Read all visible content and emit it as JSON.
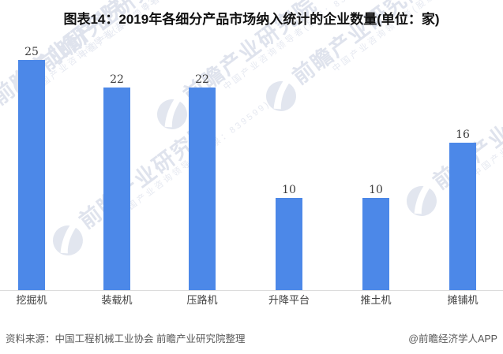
{
  "title": "图表14：2019年各细分产品市场纳入统计的企业数量(单位：家)",
  "chart_data": {
    "type": "bar",
    "title": "图表14：2019年各细分产品市场纳入统计的企业数量(单位：家)",
    "categories": [
      "挖掘机",
      "装载机",
      "压路机",
      "升降平台",
      "推土机",
      "摊铺机"
    ],
    "values": [
      25,
      22,
      22,
      10,
      10,
      16
    ],
    "unit": "家",
    "xlabel": "",
    "ylabel": "",
    "ylim": [
      0,
      25
    ],
    "grid": false,
    "legend": "none",
    "value_labels": true
  },
  "watermark": {
    "brand_text": "前瞻产业研究院",
    "registered_mark": "®",
    "tagline": "中国产业咨询领导者(股票：839599)",
    "logo": "qianzhan-bird-logo"
  },
  "footer": {
    "source": "资料来源：中国工程机械工业协会 前瞻产业研究院整理",
    "credit": "@前瞻经济学人APP"
  },
  "colors": {
    "bar": "#4C88E8",
    "axis_line": "#DCDCDC",
    "title_text": "#111111",
    "label_text": "#404040",
    "footer_text": "#595959",
    "watermark": "#E2E6EF"
  }
}
